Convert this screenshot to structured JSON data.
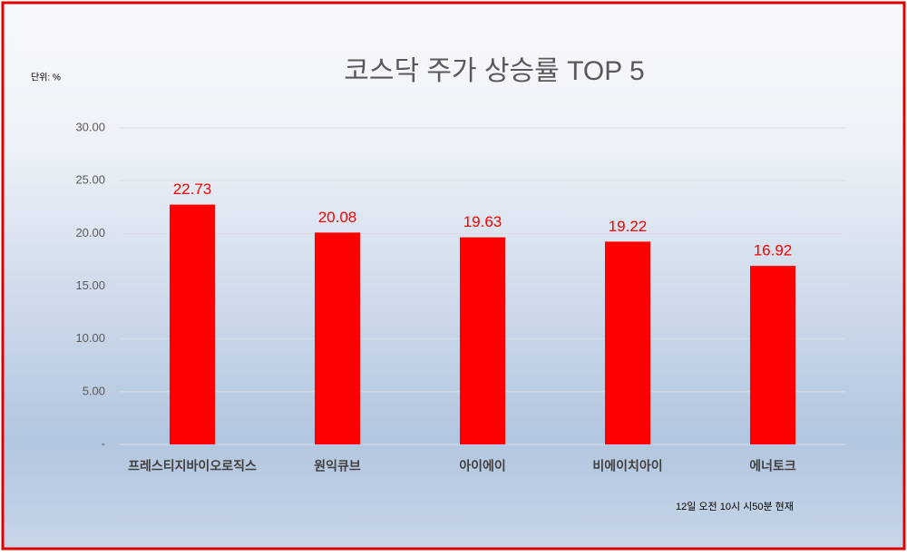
{
  "chart_data": {
    "type": "bar",
    "title": "코스닥 주가 상승률 TOP 5",
    "unit_label": "단위: %",
    "note": "12일 오전 10시 시50분 현재",
    "categories": [
      "프레스티지바이오로직스",
      "원익큐브",
      "아이에이",
      "비에이치아이",
      "에너토크"
    ],
    "values": [
      22.73,
      20.08,
      19.63,
      19.22,
      16.92
    ],
    "color": "#ff0000",
    "ylim": [
      0,
      30
    ],
    "yticks": [
      {
        "value": 0,
        "label": "-"
      },
      {
        "value": 5,
        "label": "5.00"
      },
      {
        "value": 10,
        "label": "10.00"
      },
      {
        "value": 15,
        "label": "15.00"
      },
      {
        "value": 20,
        "label": "20.00"
      },
      {
        "value": 25,
        "label": "25.00"
      },
      {
        "value": 30,
        "label": "30.00"
      }
    ],
    "grid": true
  }
}
